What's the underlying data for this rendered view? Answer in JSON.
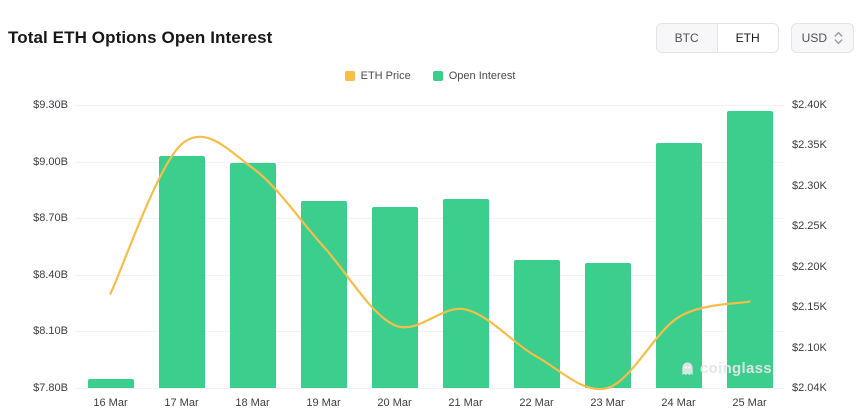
{
  "header": {
    "title": "Total ETH Options Open Interest",
    "currency_toggle": {
      "options": [
        "BTC",
        "ETH"
      ],
      "selected": "ETH"
    },
    "unit_select": {
      "value": "USD"
    }
  },
  "legend": [
    {
      "label": "ETH Price",
      "color": "#F5BE49"
    },
    {
      "label": "Open Interest",
      "color": "#3BCE8C"
    }
  ],
  "watermark": {
    "label": "coinglass"
  },
  "chart_data": {
    "type": "bar",
    "title": "Total ETH Options Open Interest",
    "categories": [
      "16 Mar",
      "17 Mar",
      "18 Mar",
      "19 Mar",
      "20 Mar",
      "21 Mar",
      "22 Mar",
      "23 Mar",
      "24 Mar",
      "25 Mar"
    ],
    "series": [
      {
        "name": "Open Interest",
        "type": "bar",
        "axis": "left",
        "unit": "$B",
        "color": "#3BCE8C",
        "values": [
          7.85,
          9.03,
          8.99,
          8.79,
          8.76,
          8.8,
          8.48,
          8.46,
          9.1,
          9.27
        ]
      },
      {
        "name": "ETH Price",
        "type": "line",
        "axis": "right",
        "unit": "$K",
        "color": "#F5BE49",
        "values": [
          2.16,
          2.35,
          2.32,
          2.22,
          2.12,
          2.14,
          2.08,
          2.04,
          2.13,
          2.15
        ]
      }
    ],
    "left_axis": {
      "ticks": [
        "$9.30B",
        "$9.00B",
        "$8.70B",
        "$8.40B",
        "$8.10B",
        "$7.80B"
      ],
      "min": 7.8,
      "max": 9.3
    },
    "right_axis": {
      "ticks": [
        "$2.40K",
        "$2.35K",
        "$2.30K",
        "$2.25K",
        "$2.20K",
        "$2.15K",
        "$2.10K",
        "$2.04K"
      ],
      "min": 2.04,
      "max": 2.4
    },
    "grid": true,
    "legend_position": "top-center"
  }
}
